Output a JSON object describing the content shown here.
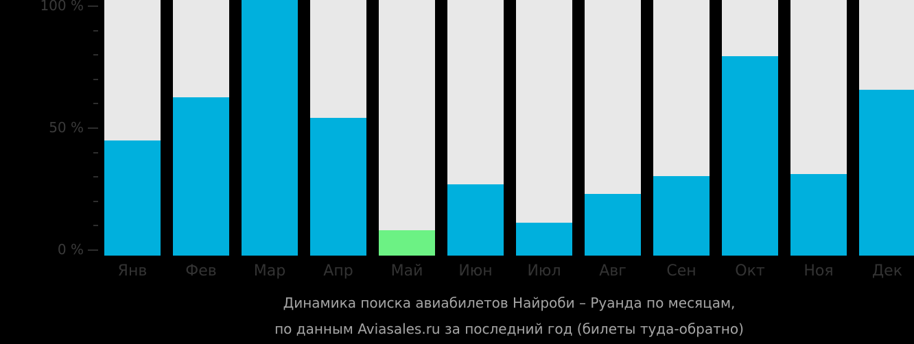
{
  "chart_data": {
    "type": "bar",
    "title": "Динамика поиска авиабилетов Найроби – Руанда по месяцам,",
    "subtitle": "по данным Aviasales.ru за последний год (билеты туда-обратно)",
    "categories": [
      "Янв",
      "Фев",
      "Мар",
      "Апр",
      "Май",
      "Июн",
      "Июл",
      "Авг",
      "Сен",
      "Окт",
      "Ноя",
      "Дек"
    ],
    "values": [
      45,
      62,
      100,
      54,
      10,
      28,
      13,
      24,
      31,
      78,
      32,
      65
    ],
    "xlabel": "",
    "ylabel": "",
    "ylim": [
      0,
      100
    ],
    "yticks": [
      "0 %",
      "50 %",
      "100 %"
    ],
    "grid": false,
    "legend": null,
    "colors": {
      "bar": "#00b0dd",
      "min_bar": "#6cf284",
      "background_bar": "#e8e8e8",
      "page_bg": "#000000"
    },
    "highlight": {
      "min_index": 4
    }
  },
  "yaxis": {
    "labels": [
      "100 %",
      "50 %",
      "0 %"
    ]
  },
  "caption": {
    "line1": "Динамика поиска авиабилетов Найроби – Руанда по месяцам,",
    "line2": "по данным Aviasales.ru за последний год (билеты туда-обратно)"
  }
}
